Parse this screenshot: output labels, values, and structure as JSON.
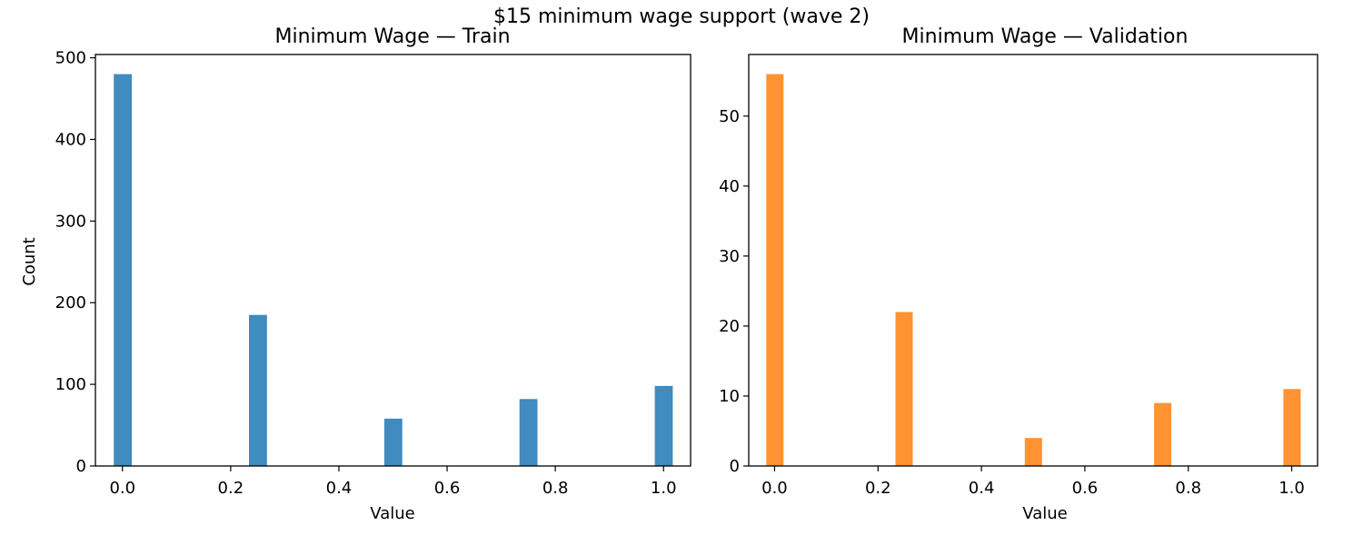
{
  "figure": {
    "suptitle": "$15 minimum wage support (wave 2)"
  },
  "chart_data": [
    {
      "type": "bar",
      "title": "Minimum Wage — Train",
      "xlabel": "Value",
      "ylabel": "Count",
      "color": "#1f77b4",
      "x": [
        0.0,
        0.25,
        0.5,
        0.75,
        1.0
      ],
      "values": [
        480,
        185,
        58,
        82,
        98
      ],
      "xlim": [
        -0.05,
        1.05
      ],
      "ylim": [
        0,
        504
      ],
      "xticks": [
        "0.0",
        "0.2",
        "0.4",
        "0.6",
        "0.8",
        "1.0"
      ],
      "yticks": [
        "0",
        "100",
        "200",
        "300",
        "400",
        "500"
      ],
      "grid": false
    },
    {
      "type": "bar",
      "title": "Minimum Wage — Validation",
      "xlabel": "Value",
      "ylabel": "",
      "color": "#ff7f0e",
      "x": [
        0.0,
        0.25,
        0.5,
        0.75,
        1.0
      ],
      "values": [
        56,
        22,
        4,
        9,
        11
      ],
      "xlim": [
        -0.05,
        1.05
      ],
      "ylim": [
        0,
        58.8
      ],
      "xticks": [
        "0.0",
        "0.2",
        "0.4",
        "0.6",
        "0.8",
        "1.0"
      ],
      "yticks": [
        "0",
        "10",
        "20",
        "30",
        "40",
        "50"
      ],
      "grid": false
    }
  ]
}
